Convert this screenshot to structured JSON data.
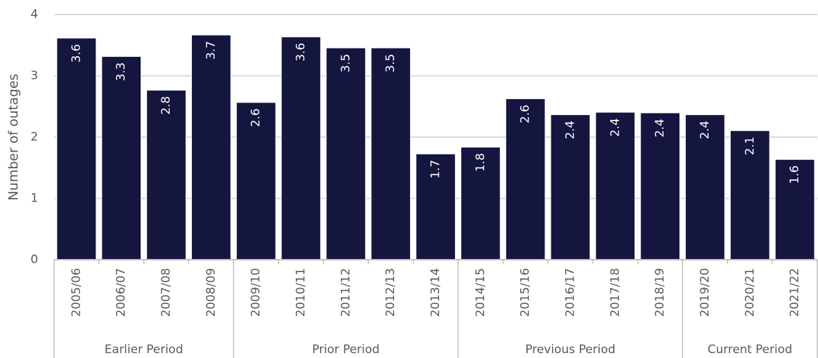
{
  "chart_data": {
    "type": "bar",
    "y_axis_label": "Number of outages",
    "groups": [
      {
        "label": "Earlier Period",
        "categories": [
          "2005/06",
          "2006/07",
          "2007/08",
          "2008/09"
        ]
      },
      {
        "label": "Prior Period",
        "categories": [
          "2009/10",
          "2010/11",
          "2011/12",
          "2012/13",
          "2013/14"
        ]
      },
      {
        "label": "Previous Period",
        "categories": [
          "2014/15",
          "2015/16",
          "2016/17",
          "2017/18",
          "2018/19"
        ]
      },
      {
        "label": "Current Period",
        "categories": [
          "2019/20",
          "2020/21",
          "2021/22"
        ]
      }
    ],
    "values": [
      3.61,
      3.31,
      2.76,
      3.66,
      2.56,
      3.63,
      3.45,
      3.45,
      1.72,
      1.83,
      2.62,
      2.36,
      2.4,
      2.39,
      2.36,
      2.1,
      1.63
    ],
    "value_labels": [
      "3.6",
      "3.3",
      "2.8",
      "3.7",
      "2.6",
      "3.6",
      "3.5",
      "3.5",
      "1.7",
      "1.8",
      "2.6",
      "2.4",
      "2.4",
      "2.4",
      "2.4",
      "2.1",
      "1.6"
    ],
    "color": "#14163f",
    "ylim": [
      0,
      4
    ],
    "yticks": [
      0,
      1,
      2,
      3,
      4
    ],
    "grid": true
  }
}
